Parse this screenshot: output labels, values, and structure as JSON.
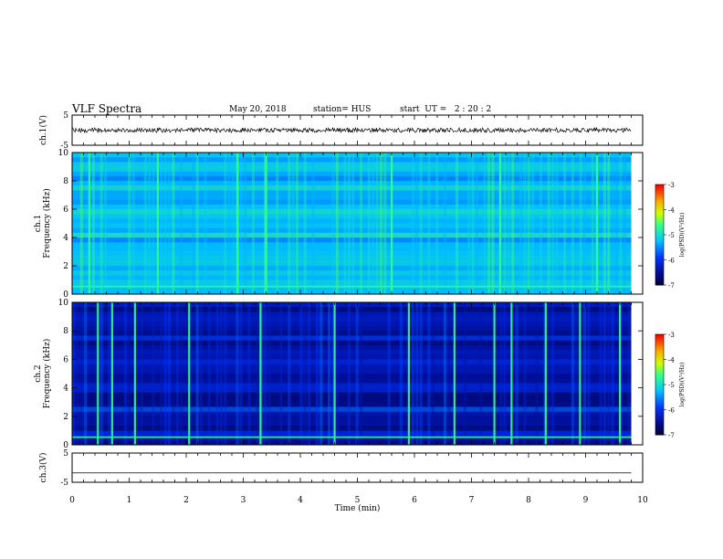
{
  "header": {
    "title": "VLF Spectra",
    "date": "May 20, 2018",
    "station": "station= HUS",
    "start": "start  UT =   2 : 20 : 2"
  },
  "chart_data": [
    {
      "type": "line",
      "panel": "ch1-waveform",
      "ylabel": "ch.1(V)",
      "ylim": [
        -5,
        5
      ],
      "yticks": [
        5,
        -5
      ],
      "xlim": [
        0,
        10
      ],
      "series": [
        {
          "x": [
            0,
            9.8
          ],
          "y": [
            0,
            0
          ]
        }
      ]
    },
    {
      "type": "heatmap",
      "panel": "ch1-spectrogram",
      "ylabel_line1": "ch.1",
      "ylabel_line2": "Frequency (kHz)",
      "ylim": [
        0,
        10
      ],
      "yticks": [
        0,
        2,
        4,
        6,
        8,
        10
      ],
      "xlim": [
        0,
        10
      ],
      "data_end_min": 9.8,
      "colorbar": {
        "label": "log(PSD)(V²/Hz)",
        "range": [
          -7,
          -3
        ],
        "ticks": [
          -3,
          -4,
          -5,
          -6,
          -7
        ]
      },
      "bright_lines_min": [
        0.3,
        1.5,
        2.9,
        3.4,
        5.6,
        7.5,
        9.2
      ]
    },
    {
      "type": "heatmap",
      "panel": "ch2-spectrogram",
      "ylabel_line1": "ch.2",
      "ylabel_line2": "Frequency (kHz)",
      "ylim": [
        0,
        10
      ],
      "yticks": [
        0,
        2,
        4,
        6,
        8,
        10
      ],
      "xlim": [
        0,
        10
      ],
      "data_end_min": 9.8,
      "colorbar": {
        "label": "log(PSD)(V²/Hz)",
        "range": [
          -7,
          -3
        ],
        "ticks": [
          -3,
          -4,
          -5,
          -6,
          -7
        ]
      },
      "bright_lines_min": [
        0.45,
        0.7,
        1.1,
        2.05,
        3.3,
        4.6,
        5.9,
        6.7,
        7.4,
        7.7,
        8.3,
        8.9,
        9.6
      ]
    },
    {
      "type": "line",
      "panel": "ch3-waveform",
      "ylabel": "ch.3(V)",
      "ylim": [
        -5,
        5
      ],
      "yticks": [
        5,
        -5
      ],
      "xlim": [
        0,
        10
      ],
      "xlabel": "Time (min)",
      "xticks": [
        0,
        1,
        2,
        3,
        4,
        5,
        6,
        7,
        8,
        9,
        10
      ],
      "series": [
        {
          "x": [
            0,
            9.8
          ],
          "y": [
            -1.8,
            -1.8
          ]
        }
      ]
    }
  ]
}
